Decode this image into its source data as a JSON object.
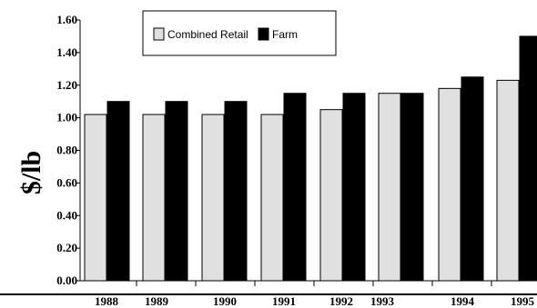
{
  "chart_data": {
    "type": "bar",
    "categories": [
      "1988",
      "1989",
      "1990",
      "1991",
      "1992",
      "1993",
      "1994",
      "1995"
    ],
    "series": [
      {
        "name": "Combined Retail",
        "color": "#e0e0e0",
        "values": [
          1.02,
          1.02,
          1.02,
          1.02,
          1.05,
          1.15,
          1.18,
          1.23
        ]
      },
      {
        "name": "Farm",
        "color": "#000000",
        "values": [
          1.1,
          1.1,
          1.1,
          1.15,
          1.15,
          1.15,
          1.25,
          1.5
        ]
      }
    ],
    "ylabel": "$/lb",
    "xlabel": "",
    "title": "",
    "ylim": [
      0,
      1.6
    ],
    "yticks": [
      "0.00",
      "0.20",
      "0.40",
      "0.60",
      "0.80",
      "1.00",
      "1.20",
      "1.40",
      "1.60"
    ],
    "legend_position": "top-center",
    "grid": false
  }
}
